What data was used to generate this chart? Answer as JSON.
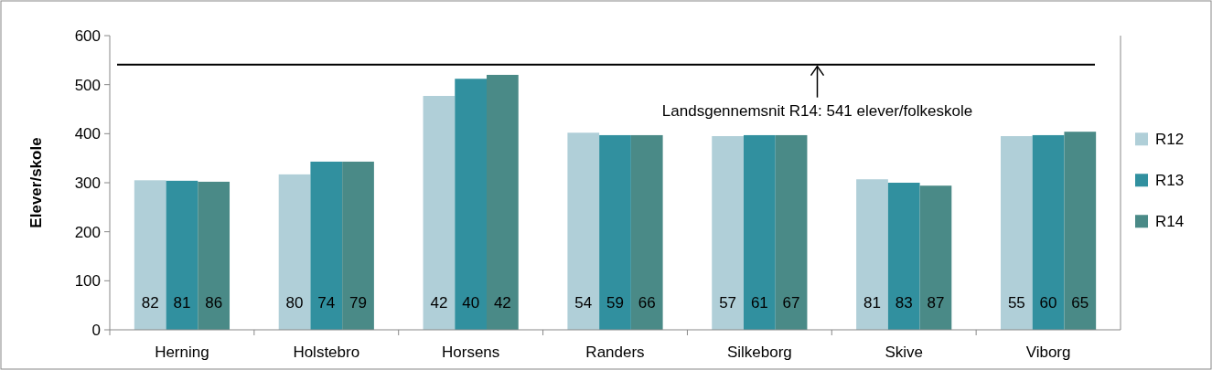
{
  "chart_data": {
    "type": "bar",
    "ylabel": "Elever/skole",
    "categories": [
      "Herning",
      "Holstebro",
      "Horsens",
      "Randers",
      "Silkeborg",
      "Skive",
      "Viborg"
    ],
    "series": [
      {
        "name": "R12",
        "color": "#b0cfd8",
        "values": [
          305,
          317,
          477,
          402,
          395,
          307,
          395
        ]
      },
      {
        "name": "R13",
        "color": "#31909f",
        "values": [
          304,
          343,
          512,
          397,
          397,
          300,
          397
        ]
      },
      {
        "name": "R14",
        "color": "#4a8a87",
        "values": [
          302,
          343,
          520,
          397,
          397,
          294,
          404
        ]
      }
    ],
    "annotations": [
      "82",
      "81",
      "86",
      "80",
      "74",
      "79",
      "42",
      "40",
      "42",
      "54",
      "59",
      "66",
      "57",
      "61",
      "67",
      "81",
      "83",
      "87",
      "55",
      "60",
      "65"
    ],
    "ylim": [
      0,
      600
    ],
    "yticks": [
      0,
      100,
      200,
      300,
      400,
      500,
      600
    ],
    "legend": "right",
    "ref_lines": [
      {
        "axis": "y",
        "value": 541,
        "label": "Landsgennemsnit R14: 541 elever/folkeskole",
        "color": "#000000"
      }
    ]
  }
}
